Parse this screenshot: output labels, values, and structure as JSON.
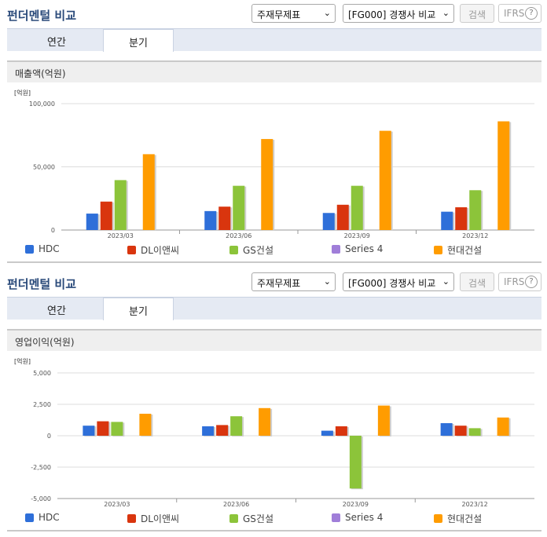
{
  "panels": [
    {
      "title": "펀더멘털 비교",
      "select_a": "주재무제표",
      "select_b": "[FG000] 경쟁사 비교",
      "search_label": "검색",
      "ifrs_label": "IFRS",
      "help_glyph": "?",
      "tabs": [
        {
          "label": "연간"
        },
        {
          "label": "분기"
        }
      ],
      "active_tab": "분기",
      "section_title": "매출액(억원)"
    },
    {
      "title": "펀더멘털 비교",
      "select_a": "주재무제표",
      "select_b": "[FG000] 경쟁사 비교",
      "search_label": "검색",
      "ifrs_label": "IFRS",
      "help_glyph": "?",
      "tabs": [
        {
          "label": "연간"
        },
        {
          "label": "분기"
        }
      ],
      "active_tab": "분기",
      "section_title": "영업이익(억원)"
    }
  ],
  "chart_data": [
    {
      "type": "bar",
      "title": "매출액(억원)",
      "unit_label": "[억원]",
      "categories": [
        "2023/03",
        "2023/06",
        "2023/09",
        "2023/12"
      ],
      "ylim": [
        0,
        100000
      ],
      "yticks": [
        0,
        50000,
        100000
      ],
      "ytick_labels": [
        "0",
        "50,000",
        "100,000"
      ],
      "grid": true,
      "legend_position": "bottom",
      "series": [
        {
          "name": "HDC",
          "color": "#2e6fd9",
          "values": [
            13000,
            15000,
            13500,
            14500
          ]
        },
        {
          "name": "DL이앤씨",
          "color": "#d9350e",
          "values": [
            22500,
            18500,
            20000,
            18000
          ]
        },
        {
          "name": "GS건설",
          "color": "#8cc43a",
          "values": [
            39500,
            35000,
            35000,
            31500
          ]
        },
        {
          "name": "Series 4",
          "color": "#a07ed9",
          "values": [
            null,
            null,
            null,
            null
          ]
        },
        {
          "name": "현대건설",
          "color": "#ff9c00",
          "values": [
            60000,
            72000,
            78500,
            86000
          ]
        }
      ]
    },
    {
      "type": "bar",
      "title": "영업이익(억원)",
      "unit_label": "[억원]",
      "categories": [
        "2023/03",
        "2023/06",
        "2023/09",
        "2023/12"
      ],
      "ylim": [
        -5000,
        5000
      ],
      "yticks": [
        -5000,
        -2500,
        0,
        2500,
        5000
      ],
      "ytick_labels": [
        "-5,000",
        "-2,500",
        "0",
        "2,500",
        "5,000"
      ],
      "grid": true,
      "legend_position": "bottom",
      "series": [
        {
          "name": "HDC",
          "color": "#2e6fd9",
          "values": [
            800,
            750,
            400,
            1000
          ]
        },
        {
          "name": "DL이앤씨",
          "color": "#d9350e",
          "values": [
            1150,
            850,
            750,
            800
          ]
        },
        {
          "name": "GS건설",
          "color": "#8cc43a",
          "values": [
            1100,
            1550,
            -4200,
            600
          ]
        },
        {
          "name": "Series 4",
          "color": "#a07ed9",
          "values": [
            null,
            null,
            null,
            null
          ]
        },
        {
          "name": "현대건설",
          "color": "#ff9c00",
          "values": [
            1750,
            2200,
            2400,
            1450
          ]
        }
      ]
    }
  ]
}
